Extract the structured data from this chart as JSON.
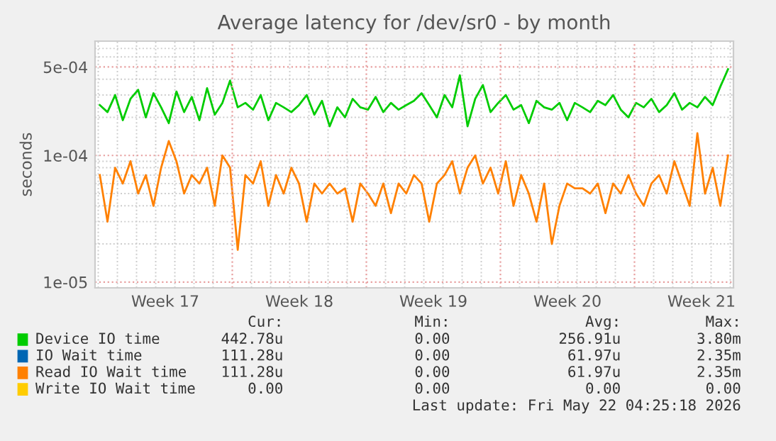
{
  "chart_data": {
    "type": "line",
    "title": "Average latency for /dev/sr0 - by month",
    "ylabel": "seconds",
    "log": "y",
    "grid": true,
    "legend": "bottom",
    "marker": "none",
    "line_style": "solid",
    "xlim": [
      "2026-04-19T20:00",
      "2026-05-23T04:00"
    ],
    "xticks": [
      {
        "value": "2026-04-23T12:00",
        "label": "Week 17"
      },
      {
        "value": "2026-04-27",
        "label": null
      },
      {
        "value": "2026-04-30T12:00",
        "label": "Week 18"
      },
      {
        "value": "2026-05-04",
        "label": null
      },
      {
        "value": "2026-05-07T12:00",
        "label": "Week 19"
      },
      {
        "value": "2026-05-11",
        "label": null
      },
      {
        "value": "2026-05-14T12:00",
        "label": "Week 20"
      },
      {
        "value": "2026-05-18",
        "label": null
      },
      {
        "value": "2026-05-21T12:00",
        "label": "Week 21"
      }
    ],
    "ylim": [
      9e-06,
      0.0008
    ],
    "yticks": [
      {
        "value": 1e-05,
        "label": "1e-05"
      },
      {
        "value": 0.0001,
        "label": "1e-04"
      },
      {
        "value": 0.0005,
        "label": "5e-04"
      }
    ],
    "x": [
      "2026-04-20T02:00",
      "2026-04-20T11:36",
      "2026-04-20T21:12",
      "2026-04-21T06:48",
      "2026-04-21T16:24",
      "2026-04-22T02:00",
      "2026-04-22T11:36",
      "2026-04-22T21:12",
      "2026-04-23T06:48",
      "2026-04-23T16:24",
      "2026-04-24T02:00",
      "2026-04-24T11:36",
      "2026-04-24T21:12",
      "2026-04-25T06:48",
      "2026-04-25T16:24",
      "2026-04-26T02:00",
      "2026-04-26T11:36",
      "2026-04-26T21:12",
      "2026-04-27T06:48",
      "2026-04-27T16:24",
      "2026-04-28T02:00",
      "2026-04-28T11:36",
      "2026-04-28T21:12",
      "2026-04-29T06:48",
      "2026-04-29T16:24",
      "2026-04-30T02:00",
      "2026-04-30T11:36",
      "2026-04-30T21:12",
      "2026-05-01T06:48",
      "2026-05-01T16:24",
      "2026-05-02T02:00",
      "2026-05-02T11:36",
      "2026-05-02T21:12",
      "2026-05-03T06:48",
      "2026-05-03T16:24",
      "2026-05-04T02:00",
      "2026-05-04T11:36",
      "2026-05-04T21:12",
      "2026-05-05T06:48",
      "2026-05-05T16:24",
      "2026-05-06T02:00",
      "2026-05-06T11:36",
      "2026-05-06T21:12",
      "2026-05-07T06:48",
      "2026-05-07T16:24",
      "2026-05-08T02:00",
      "2026-05-08T11:36",
      "2026-05-08T21:12",
      "2026-05-09T06:48",
      "2026-05-09T16:24",
      "2026-05-10T02:00",
      "2026-05-10T11:36",
      "2026-05-10T21:12",
      "2026-05-11T06:48",
      "2026-05-11T16:24",
      "2026-05-12T02:00",
      "2026-05-12T11:36",
      "2026-05-12T21:12",
      "2026-05-13T06:48",
      "2026-05-13T16:24",
      "2026-05-14T02:00",
      "2026-05-14T11:36",
      "2026-05-14T21:12",
      "2026-05-15T06:48",
      "2026-05-15T16:24",
      "2026-05-16T02:00",
      "2026-05-16T11:36",
      "2026-05-16T21:12",
      "2026-05-17T06:48",
      "2026-05-17T16:24",
      "2026-05-18T02:00",
      "2026-05-18T11:36",
      "2026-05-18T21:12",
      "2026-05-19T06:48",
      "2026-05-19T16:24",
      "2026-05-20T02:00",
      "2026-05-20T11:36",
      "2026-05-20T21:12",
      "2026-05-21T06:48",
      "2026-05-21T16:24",
      "2026-05-22T02:00",
      "2026-05-22T11:36",
      "2026-05-22T21:12"
    ],
    "series": [
      {
        "name": "Device IO time",
        "color": "#00cc00",
        "values": [
          0.00025,
          0.00022,
          0.0003,
          0.00019,
          0.00028,
          0.00033,
          0.0002,
          0.00031,
          0.00024,
          0.00018,
          0.00032,
          0.00022,
          0.00029,
          0.00019,
          0.00034,
          0.00021,
          0.00026,
          0.00039,
          0.00024,
          0.00026,
          0.00023,
          0.0003,
          0.00019,
          0.00026,
          0.00024,
          0.00022,
          0.00025,
          0.0003,
          0.00021,
          0.00027,
          0.00017,
          0.00024,
          0.0002,
          0.00028,
          0.00024,
          0.00023,
          0.00029,
          0.00022,
          0.00026,
          0.00023,
          0.00025,
          0.00027,
          0.00031,
          0.00025,
          0.0002,
          0.0003,
          0.00024,
          0.00043,
          0.00017,
          0.00028,
          0.00036,
          0.00022,
          0.00026,
          0.0003,
          0.00023,
          0.00025,
          0.00018,
          0.00027,
          0.00024,
          0.00023,
          0.00026,
          0.00019,
          0.00026,
          0.00024,
          0.00022,
          0.00027,
          0.00025,
          0.0003,
          0.00023,
          0.0002,
          0.00026,
          0.00024,
          0.00028,
          0.00022,
          0.00025,
          0.00031,
          0.00023,
          0.00026,
          0.00024,
          0.00029,
          0.00025,
          0.00035,
          0.00048
        ]
      },
      {
        "name": "IO Wait time",
        "color": "#0066b3",
        "values": [
          null,
          null,
          null,
          null,
          null,
          null,
          null,
          null,
          null,
          null,
          null,
          null,
          null,
          null,
          null,
          null,
          null,
          null,
          null,
          null,
          null,
          null,
          null,
          null,
          null,
          null,
          null,
          null,
          null,
          null,
          null,
          null,
          null,
          null,
          null,
          null,
          null,
          null,
          null,
          null,
          null,
          null,
          null,
          null,
          null,
          null,
          null,
          null,
          null,
          null,
          null,
          null,
          null,
          null,
          null,
          null,
          null,
          null,
          null,
          null,
          null,
          null,
          null,
          null,
          null,
          null,
          null,
          null,
          null,
          null,
          null,
          null,
          null,
          null,
          null,
          null,
          null,
          null,
          null,
          null,
          null,
          null,
          null
        ]
      },
      {
        "name": "Read IO Wait time",
        "color": "#ff8000",
        "values": [
          7e-05,
          3e-05,
          8e-05,
          6e-05,
          9e-05,
          5e-05,
          7e-05,
          4e-05,
          8e-05,
          0.00013,
          9e-05,
          5e-05,
          7e-05,
          6e-05,
          8e-05,
          4e-05,
          0.0001,
          8e-05,
          1.8e-05,
          7e-05,
          6e-05,
          9e-05,
          4e-05,
          7e-05,
          5e-05,
          8e-05,
          6e-05,
          3e-05,
          6e-05,
          5e-05,
          6e-05,
          5e-05,
          5.5e-05,
          3e-05,
          6e-05,
          5e-05,
          4e-05,
          6e-05,
          3.5e-05,
          6e-05,
          5e-05,
          7e-05,
          6e-05,
          3e-05,
          6e-05,
          7e-05,
          9e-05,
          5e-05,
          8e-05,
          0.0001,
          6e-05,
          8e-05,
          5e-05,
          9e-05,
          4e-05,
          7e-05,
          5e-05,
          3e-05,
          6e-05,
          2e-05,
          4e-05,
          6e-05,
          5.5e-05,
          5.5e-05,
          5e-05,
          6e-05,
          3.5e-05,
          6e-05,
          5e-05,
          7e-05,
          5e-05,
          4e-05,
          6e-05,
          7e-05,
          5e-05,
          9e-05,
          6e-05,
          4e-05,
          0.00015,
          5e-05,
          8e-05,
          4e-05,
          0.0001
        ]
      },
      {
        "name": "Write IO Wait time",
        "color": "#ffcc00",
        "values": [
          null,
          null,
          null,
          null,
          null,
          null,
          null,
          null,
          null,
          null,
          null,
          null,
          null,
          null,
          null,
          null,
          null,
          null,
          null,
          null,
          null,
          null,
          null,
          null,
          null,
          null,
          null,
          null,
          null,
          null,
          null,
          null,
          null,
          null,
          null,
          null,
          null,
          null,
          null,
          null,
          null,
          null,
          null,
          null,
          null,
          null,
          null,
          null,
          null,
          null,
          null,
          null,
          null,
          null,
          null,
          null,
          null,
          null,
          null,
          null,
          null,
          null,
          null,
          null,
          null,
          null,
          null,
          null,
          null,
          null,
          null,
          null,
          null,
          null,
          null,
          null,
          null,
          null,
          null,
          null,
          null,
          null,
          null
        ]
      }
    ],
    "annotations": [
      "Cur:",
      "Min:",
      "Avg:",
      "Max:",
      "442.78u",
      "0.00",
      "256.91u",
      "3.80m",
      "111.28u",
      "0.00",
      "61.97u",
      "2.35m",
      "111.28u",
      "0.00",
      "61.97u",
      "2.35m",
      "0.00",
      "0.00",
      "0.00",
      "0.00",
      "Last update: Fri May 22 04:25:18 2026"
    ]
  }
}
